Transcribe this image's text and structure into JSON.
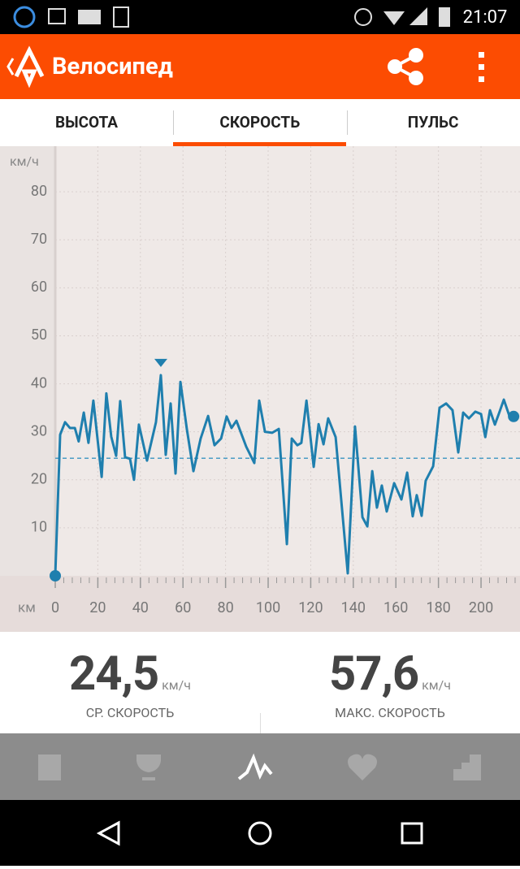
{
  "status_bar": {
    "time": "21:07"
  },
  "app_bar": {
    "title": "Велосипед"
  },
  "tabs": {
    "items": [
      "ВЫСОТА",
      "СКОРОСТЬ",
      "ПУЛЬС"
    ],
    "active": 1
  },
  "chart_data": {
    "type": "line",
    "y_label": "км/ч",
    "x_label": "км",
    "color": "#1f7fae",
    "x": [
      0,
      2.3,
      4.6,
      6.9,
      9.2,
      11,
      13.4,
      15.6,
      17.9,
      21.8,
      24,
      26.3,
      28.6,
      30.5,
      32.8,
      35.1,
      37,
      39.3,
      43.1,
      47.3,
      49.6,
      51.9,
      54.2,
      56.5,
      58.8,
      61.8,
      64.9,
      68.3,
      71.8,
      74.8,
      77.9,
      80.5,
      82.8,
      85.1,
      89.7,
      93.5,
      95.8,
      98.5,
      101.9,
      105,
      108.8,
      111.1,
      113.7,
      115.6,
      118,
      121.4,
      123.7,
      126,
      128.2,
      131.7,
      137.4,
      140.8,
      144.3,
      146.6,
      148.9,
      151.1,
      153.4,
      155.7,
      159.2,
      162.6,
      165.3,
      167.9,
      169.8,
      172.1,
      174,
      177.5,
      180.5,
      183.6,
      186.6,
      189.3,
      191.6,
      194.3,
      197.3,
      200,
      202,
      204.2,
      206.5,
      208.4,
      210.7,
      213.4,
      215.3
    ],
    "values": [
      0,
      29.4,
      32,
      30.8,
      30.8,
      28,
      34,
      27.7,
      36.5,
      20.6,
      38,
      29,
      25,
      36.4,
      24.7,
      24.4,
      20,
      31.5,
      24,
      32,
      41.8,
      25.2,
      35.9,
      21.3,
      40.4,
      30.6,
      21.8,
      28.6,
      33.3,
      27.2,
      28.6,
      33.2,
      30.8,
      32.3,
      26.9,
      23.5,
      36.5,
      30,
      29.8,
      30.6,
      6.6,
      28.6,
      27.2,
      27.7,
      36.5,
      22.7,
      31.6,
      27.4,
      32.8,
      28.9,
      0.5,
      31.1,
      12.2,
      10.3,
      21.8,
      14.2,
      18.8,
      13.4,
      19.3,
      15.9,
      21.5,
      12.4,
      16.8,
      12.5,
      19.8,
      22.8,
      35,
      35.9,
      34.5,
      25.7,
      34,
      32.8,
      34.2,
      33.7,
      28.9,
      34.5,
      31.5,
      33.8,
      36.7,
      33.2,
      33.2
    ],
    "average": 24.5,
    "xlim": [
      0,
      218.3
    ],
    "ylim": [
      0,
      89.5
    ],
    "xticks": [
      0,
      20,
      40,
      60,
      80,
      100,
      120,
      140,
      160,
      180,
      200
    ],
    "yticks": [
      10,
      20,
      30,
      40,
      50,
      60,
      70,
      80
    ],
    "grid": true
  },
  "stats": [
    {
      "value": "24,5",
      "unit": "км/ч",
      "label": "СР. СКОРОСТЬ"
    },
    {
      "value": "57,6",
      "unit": "км/ч",
      "label": "МАКС. СКОРОСТЬ"
    }
  ]
}
